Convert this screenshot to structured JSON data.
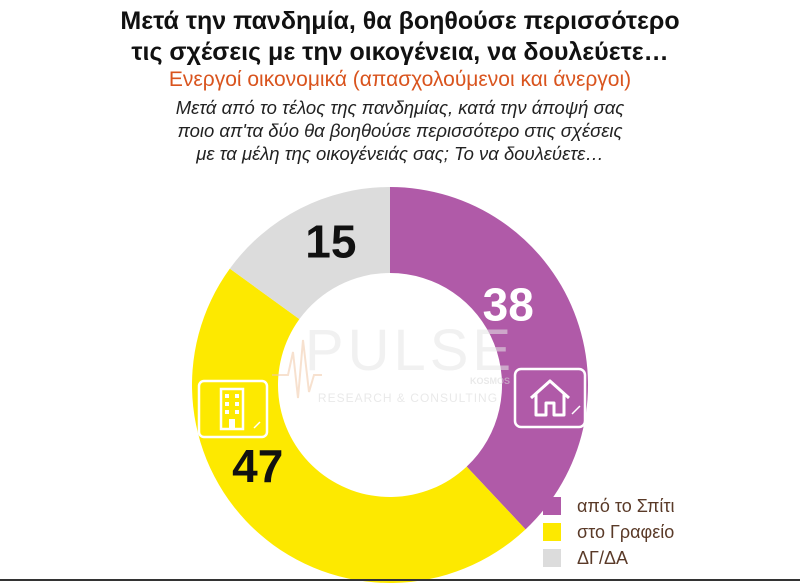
{
  "chart_data": {
    "type": "pie",
    "title": "Μετά την πανδημία, θα βοηθούσε περισσότερο τις σχέσεις με την οικογένεια, να δουλεύετε…",
    "title_lines": [
      "Μετά την πανδημία, θα βοηθούσε περισσότερο",
      "τις σχέσεις με την οικογένεια, να δουλεύετε…"
    ],
    "subtitle": "Ενεργοί οικονομικά  (απασχολούμενοι και άνεργοι)",
    "question_lines": [
      "Μετά από το τέλος της πανδημίας, κατά την άποψή σας",
      "ποιο απ'τα δύο θα βοηθούσε περισσότερο στις σχέσεις",
      "με τα μέλη της οικογένειάς σας; Το να δουλεύετε…"
    ],
    "donut": true,
    "categories": [
      "από το Σπίτι",
      "στο Γραφείο",
      "ΔΓ/ΔΑ"
    ],
    "values": [
      38,
      47,
      15
    ],
    "value_labels": [
      "38",
      "47",
      "15"
    ],
    "colors": [
      "#b05aa8",
      "#fde900",
      "#dcdcdc"
    ],
    "label_colors": [
      "#ffffff",
      "#111111",
      "#111111"
    ],
    "legend_position": "bottom-right"
  },
  "watermark": {
    "brand": "PULSE",
    "tag": "KOSMOS",
    "line": "RESEARCH & CONSULTING"
  },
  "icons": {
    "home": "house-icon",
    "office": "office-building-icon"
  }
}
